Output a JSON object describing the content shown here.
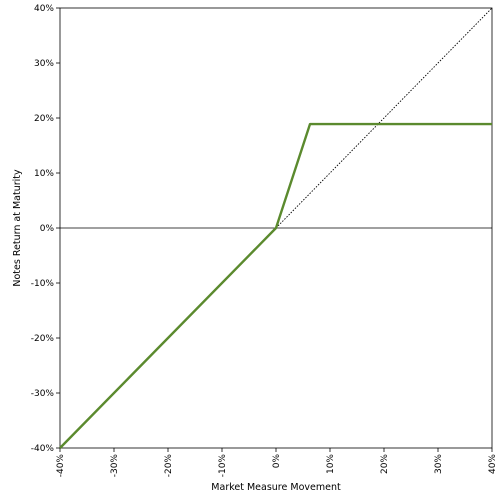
{
  "chart_data": {
    "type": "line",
    "xlabel": "Market Measure Movement",
    "ylabel": "Notes Return at Maturity",
    "xlim": [
      -40,
      40
    ],
    "ylim": [
      -40,
      40
    ],
    "x_ticks": [
      -40,
      -30,
      -20,
      -10,
      0,
      10,
      20,
      30,
      40
    ],
    "y_ticks": [
      -40,
      -30,
      -20,
      -10,
      0,
      10,
      20,
      30,
      40
    ],
    "x_tick_labels": [
      "-40%",
      "-30%",
      "-20%",
      "-10%",
      "0%",
      "10%",
      "20%",
      "30%",
      "40%"
    ],
    "y_tick_labels": [
      "-40%",
      "-30%",
      "-20%",
      "-10%",
      "0%",
      "10%",
      "20%",
      "30%",
      "40%"
    ],
    "grid": false,
    "zero_line": true,
    "series": [
      {
        "style": "solid",
        "color": "#5b8a2e",
        "points": [
          [
            -40,
            -40
          ],
          [
            0,
            0
          ],
          [
            6.3,
            18.9
          ],
          [
            40,
            18.9
          ]
        ]
      },
      {
        "style": "dotted",
        "color": "#000000",
        "points": [
          [
            0,
            0
          ],
          [
            40,
            40
          ]
        ]
      }
    ]
  }
}
